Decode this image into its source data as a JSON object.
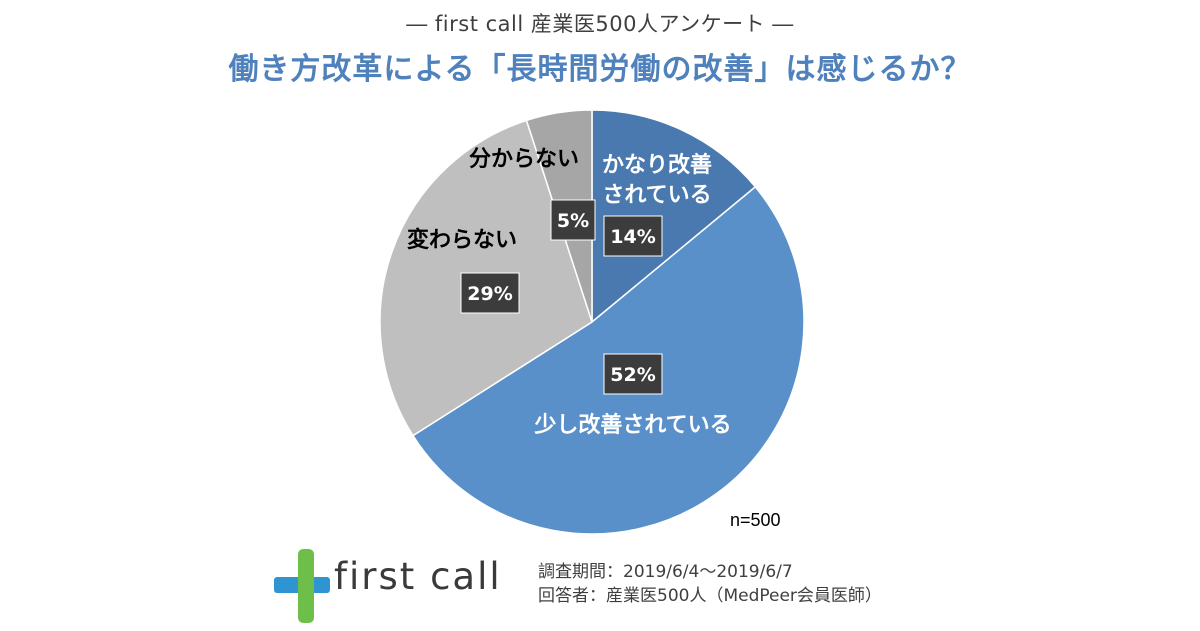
{
  "header": {
    "subtitle": "― first call 産業医500人アンケート ―",
    "title": "働き方改革による「長時間労働の改善」は感じるか？"
  },
  "chart_data": {
    "type": "pie",
    "slices": [
      {
        "label": "かなり改善されている",
        "value": 14,
        "pct_label": "14%",
        "color": "#4a79b0",
        "label_color": "#ffffff"
      },
      {
        "label": "少し改善されている",
        "value": 52,
        "pct_label": "52%",
        "color": "#5a90c9",
        "label_color": "#ffffff"
      },
      {
        "label": "変わらない",
        "value": 29,
        "pct_label": "29%",
        "color": "#bfbfbf",
        "label_color": "#000000"
      },
      {
        "label": "分からない",
        "value": 5,
        "pct_label": "5%",
        "color": "#a6a6a6",
        "label_color": "#000000"
      }
    ],
    "start_direction": "top, clockwise"
  },
  "sample_note": "n=500",
  "footer": {
    "logo_text": "first call",
    "period": "調査期間：2019/6/4～2019/6/7",
    "respondents": "回答者：産業医500人（MedPeer会員医師）"
  },
  "colors": {
    "title": "#4f81bd",
    "pct_box": "#3c3c3c",
    "logo_green": "#6dbf4a",
    "logo_blue": "#2e95d2"
  }
}
